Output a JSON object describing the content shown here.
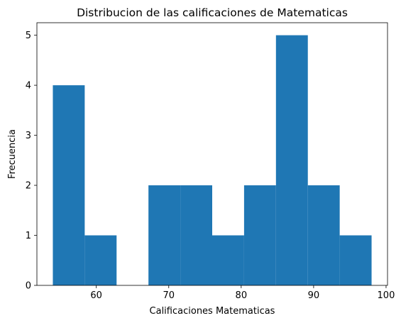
{
  "chart_data": {
    "type": "bar",
    "title": "Distribucion de las calificaciones de Matematicas",
    "xlabel": "Calificaciones Matematicas",
    "ylabel": "Frecuencia",
    "xlim": [
      51.8,
      100.2
    ],
    "ylim": [
      0,
      5.25
    ],
    "xticks": [
      60,
      70,
      80,
      90,
      100
    ],
    "yticks": [
      0,
      1,
      2,
      3,
      4,
      5
    ],
    "bar_color": "#1f77b4",
    "grid": false,
    "bins": [
      {
        "x0": 54.0,
        "x1": 58.4,
        "count": 4
      },
      {
        "x0": 58.4,
        "x1": 62.8,
        "count": 1
      },
      {
        "x0": 62.8,
        "x1": 67.2,
        "count": 0
      },
      {
        "x0": 67.2,
        "x1": 71.6,
        "count": 2
      },
      {
        "x0": 71.6,
        "x1": 76.0,
        "count": 2
      },
      {
        "x0": 76.0,
        "x1": 80.4,
        "count": 1
      },
      {
        "x0": 80.4,
        "x1": 84.8,
        "count": 2
      },
      {
        "x0": 84.8,
        "x1": 89.2,
        "count": 5
      },
      {
        "x0": 89.2,
        "x1": 93.6,
        "count": 2
      },
      {
        "x0": 93.6,
        "x1": 98.0,
        "count": 1
      }
    ]
  }
}
